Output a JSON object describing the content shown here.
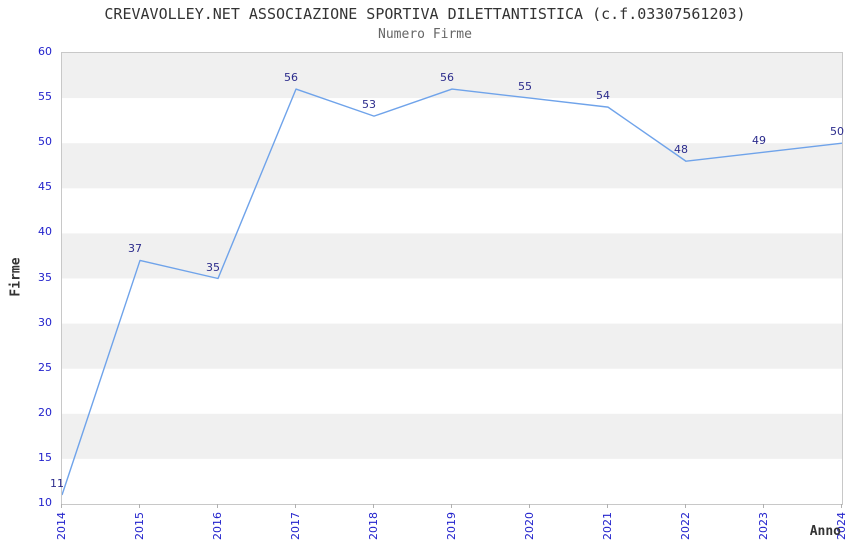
{
  "chart_data": {
    "type": "line",
    "title": "CREVAVOLLEY.NET ASSOCIAZIONE SPORTIVA DILETTANTISTICA (c.f.03307561203)",
    "subtitle": "Numero Firme",
    "xlabel": "Anno",
    "ylabel": "Firme",
    "categories": [
      "2014",
      "2015",
      "2016",
      "2017",
      "2018",
      "2019",
      "2020",
      "2021",
      "2022",
      "2023",
      "2024"
    ],
    "values": [
      11,
      37,
      35,
      56,
      53,
      56,
      55,
      54,
      48,
      49,
      50
    ],
    "ylim": [
      10,
      60
    ],
    "yticks": [
      10,
      15,
      20,
      25,
      30,
      35,
      40,
      45,
      50,
      55,
      60
    ],
    "grid": "alternating-horizontal-bands",
    "legend": "none",
    "data_labels_visible": true,
    "colors": {
      "line": "#6fa3ea",
      "tick_label": "#2222cc",
      "data_label": "#2b2b8c",
      "band": "#f0f0f0",
      "plot_border": "#c8c8c8",
      "title_text": "#333333",
      "subtitle_text": "#666666"
    }
  }
}
